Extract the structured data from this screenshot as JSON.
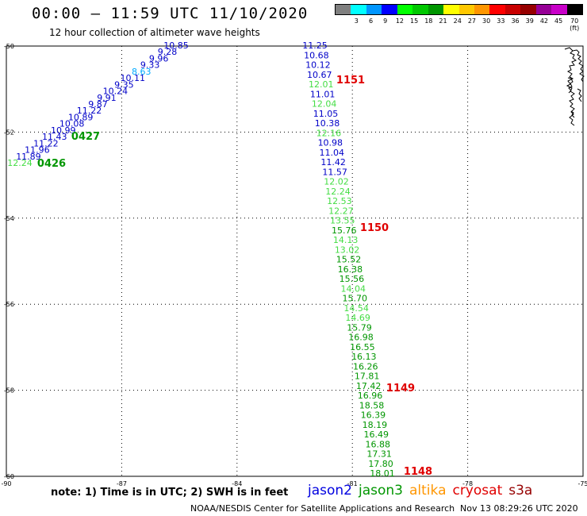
{
  "header": {
    "title": "00:00 — 11:59 UTC 11/10/2020",
    "subtitle": "12 hour collection of altimeter wave heights"
  },
  "colorbar": {
    "colors": [
      "#7f7f7f",
      "#00ffff",
      "#0096ff",
      "#0000ff",
      "#00ff00",
      "#00c800",
      "#009600",
      "#ffff00",
      "#ffc800",
      "#ff9600",
      "#ff0000",
      "#c80000",
      "#960000",
      "#960096",
      "#c800c8",
      "#000000"
    ],
    "labels": [
      "3",
      "6",
      "9",
      "12",
      "15",
      "18",
      "21",
      "24",
      "27",
      "30",
      "33",
      "36",
      "39",
      "42",
      "45",
      "70 (ft)"
    ]
  },
  "map": {
    "lon_ticks": [
      "-90",
      "-87",
      "-84",
      "-81",
      "-78",
      "-75"
    ],
    "lat_ticks": [
      "-50",
      "-52",
      "-54",
      "-56",
      "-58",
      "-60"
    ],
    "lon_range": [
      -90,
      -75
    ],
    "lat_range": [
      -50,
      -60
    ]
  },
  "passes": [
    {
      "label": "0427",
      "color": "#009600"
    },
    {
      "label": "0426",
      "color": "#009600"
    },
    {
      "label": "1151",
      "color": "#e00000"
    },
    {
      "label": "1150",
      "color": "#e00000"
    },
    {
      "label": "1149",
      "color": "#e00000"
    },
    {
      "label": "1148",
      "color": "#e00000"
    }
  ],
  "track_a": {
    "values": [
      "10.85",
      "9.28",
      "9.96",
      "9.33",
      "8.63",
      "10.11",
      "9.35",
      "10.24",
      "9.91",
      "9.87",
      "11.22",
      "10.89",
      "10.08",
      "10.99",
      "11.43",
      "11.22",
      "11.96",
      "11.89",
      "12.24"
    ],
    "colors": [
      "#0000c8",
      "#0000c8",
      "#0000c8",
      "#0000c8",
      "#00aaff",
      "#0000c8",
      "#0000c8",
      "#0000c8",
      "#0000c8",
      "#0000c8",
      "#0000c8",
      "#0000c8",
      "#0000c8",
      "#0000c8",
      "#0000c8",
      "#0000c8",
      "#0000c8",
      "#0000c8",
      "#44dd44"
    ]
  },
  "track_b": {
    "values": [
      "11.25",
      "10.68",
      "10.12",
      "10.67",
      "12.01",
      "11.01",
      "12.04",
      "11.05",
      "10.38",
      "12.16",
      "10.98",
      "11.04",
      "11.42",
      "11.57",
      "12.02",
      "12.24",
      "12.53",
      "12.27",
      "13.55",
      "15.76",
      "14.13",
      "13.02",
      "15.52",
      "16.38",
      "15.56",
      "14.04",
      "15.70",
      "14.54",
      "14.69",
      "15.79",
      "16.98",
      "16.55",
      "16.13",
      "16.26",
      "17.81",
      "17.42",
      "16.96",
      "18.58",
      "16.39",
      "18.19",
      "16.49",
      "16.88",
      "17.31",
      "17.80",
      "18.01"
    ],
    "colors": [
      "#0000c8",
      "#0000c8",
      "#0000c8",
      "#0000c8",
      "#44dd44",
      "#0000c8",
      "#44dd44",
      "#0000c8",
      "#0000c8",
      "#44dd44",
      "#0000c8",
      "#0000c8",
      "#0000c8",
      "#0000c8",
      "#44dd44",
      "#44dd44",
      "#44dd44",
      "#44dd44",
      "#44dd44",
      "#009600",
      "#44dd44",
      "#44dd44",
      "#009600",
      "#009600",
      "#009600",
      "#44dd44",
      "#009600",
      "#44dd44",
      "#44dd44",
      "#009600",
      "#009600",
      "#009600",
      "#009600",
      "#009600",
      "#009600",
      "#009600",
      "#009600",
      "#009600",
      "#009600",
      "#009600",
      "#009600",
      "#009600",
      "#009600",
      "#009600",
      "#009600"
    ]
  },
  "note": "note: 1) Time is in UTC; 2) SWH is in feet",
  "satellites": [
    {
      "name": "jason2",
      "color": "#0000e0"
    },
    {
      "name": "jason3",
      "color": "#009600"
    },
    {
      "name": "altika",
      "color": "#ff9600"
    },
    {
      "name": "cryosat",
      "color": "#e00000"
    },
    {
      "name": "s3a",
      "color": "#960000"
    }
  ],
  "footer": {
    "credit": "NOAA/NESDIS Center for Satellite Applications and Research",
    "timestamp": "Nov 13 08:29:26 UTC 2020"
  }
}
